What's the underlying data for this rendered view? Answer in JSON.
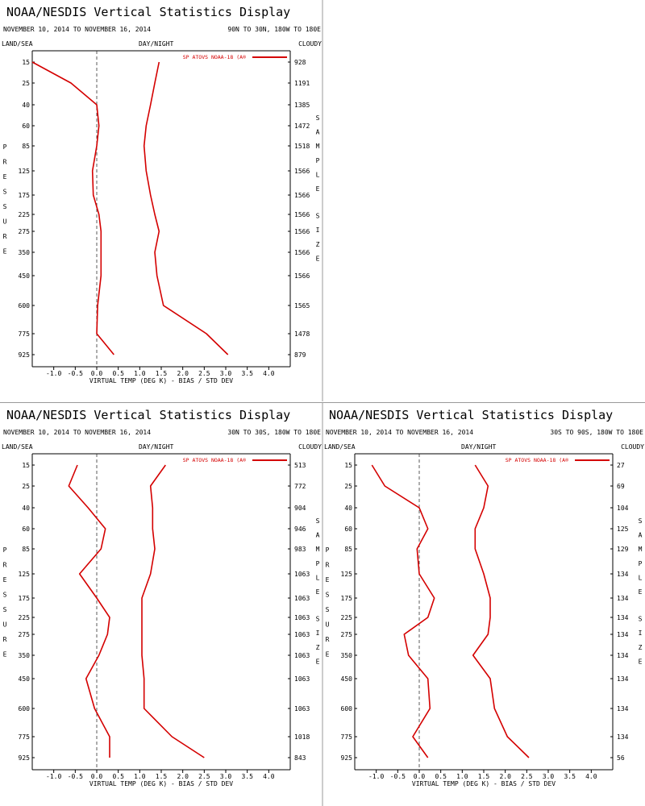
{
  "page": {
    "title": "NOAA/NESDIS Vertical Statistics Display",
    "date_range": "NOVEMBER 10, 2014 TO NOVEMBER 16, 2014",
    "land_sea_label": "LAND/SEA",
    "day_night_label": "DAY/NIGHT",
    "cloudy_label": "CLOUDY",
    "legend_label": "SP ATOVS NOAA-18 (A®",
    "y_axis_label": "PRESSURE",
    "right_axis_label": "SAMPLE SIZE",
    "x_axis_label": "VIRTUAL TEMP (DEG K) - BIAS / STD DEV",
    "colors": {
      "series": "#d40000",
      "axis": "#000000",
      "zero_line": "#000000"
    }
  },
  "chart_data": [
    {
      "type": "line",
      "region": "90N TO 30N, 180W TO 180E",
      "pressure_levels": [
        "15",
        "25",
        "40",
        "60",
        "85",
        "125",
        "175",
        "225",
        "275",
        "350",
        "450",
        "600",
        "775",
        "925"
      ],
      "sample_size": [
        "928",
        "1191",
        "1385",
        "1472",
        "1518",
        "1566",
        "1566",
        "1566",
        "1566",
        "1566",
        "1566",
        "1565",
        "1478",
        "879"
      ],
      "xlim": [
        -1.5,
        4.5
      ],
      "x_ticks": [
        -1.0,
        -0.5,
        0.0,
        0.5,
        1.0,
        1.5,
        2.0,
        2.5,
        3.0,
        3.5,
        4.0
      ],
      "x_tick_labels": [
        "-1.0",
        "-0.5",
        "0.0",
        "0.5",
        "1.0",
        "1.5",
        "2.0",
        "2.5",
        "3.0",
        "3.5",
        "4.0"
      ],
      "series": [
        {
          "values": [
            -1.5,
            -0.6,
            0.0,
            0.05,
            0.0,
            -0.1,
            -0.08,
            0.05,
            0.1,
            0.1,
            0.1,
            0.02,
            0.0,
            0.4
          ]
        },
        {
          "values": [
            1.45,
            1.35,
            1.25,
            1.15,
            1.1,
            1.15,
            1.25,
            1.35,
            1.45,
            1.35,
            1.4,
            1.55,
            2.55,
            3.05
          ]
        }
      ]
    },
    {
      "type": "line",
      "region": "30N TO 30S, 180W TO 180E",
      "pressure_levels": [
        "15",
        "25",
        "40",
        "60",
        "85",
        "125",
        "175",
        "225",
        "275",
        "350",
        "450",
        "600",
        "775",
        "925"
      ],
      "sample_size": [
        "513",
        "772",
        "904",
        "946",
        "983",
        "1063",
        "1063",
        "1063",
        "1063",
        "1063",
        "1063",
        "1063",
        "1018",
        "843"
      ],
      "xlim": [
        -1.5,
        4.5
      ],
      "x_ticks": [
        -1.0,
        -0.5,
        0.0,
        0.5,
        1.0,
        1.5,
        2.0,
        2.5,
        3.0,
        3.5,
        4.0
      ],
      "x_tick_labels": [
        "-1.0",
        "-0.5",
        "0.0",
        "0.5",
        "1.0",
        "1.5",
        "2.0",
        "2.5",
        "3.0",
        "3.5",
        "4.0"
      ],
      "series": [
        {
          "values": [
            -0.45,
            -0.65,
            -0.2,
            0.2,
            0.1,
            -0.4,
            0.0,
            0.3,
            0.25,
            0.05,
            -0.25,
            -0.05,
            0.3,
            0.3
          ]
        },
        {
          "values": [
            1.6,
            1.25,
            1.3,
            1.3,
            1.35,
            1.25,
            1.05,
            1.05,
            1.05,
            1.05,
            1.1,
            1.1,
            1.75,
            2.5
          ]
        }
      ]
    },
    {
      "type": "line",
      "region": "30S TO 90S, 180W TO 180E",
      "pressure_levels": [
        "15",
        "25",
        "40",
        "60",
        "85",
        "125",
        "175",
        "225",
        "275",
        "350",
        "450",
        "600",
        "775",
        "925"
      ],
      "sample_size": [
        "27",
        "69",
        "104",
        "125",
        "129",
        "134",
        "134",
        "134",
        "134",
        "134",
        "134",
        "134",
        "134",
        "56"
      ],
      "xlim": [
        -1.5,
        4.5
      ],
      "x_ticks": [
        -1.0,
        -0.5,
        0.0,
        0.5,
        1.0,
        1.5,
        2.0,
        2.5,
        3.0,
        3.5,
        4.0
      ],
      "x_tick_labels": [
        "-1.0",
        "-0.5",
        "0.0",
        "0.5",
        "1.0",
        "1.5",
        "2.0",
        "2.5",
        "3.0",
        "3.5",
        "4.0"
      ],
      "series": [
        {
          "values": [
            -1.1,
            -0.8,
            0.0,
            0.2,
            -0.05,
            0.0,
            0.35,
            0.2,
            -0.35,
            -0.25,
            0.2,
            0.25,
            -0.15,
            0.2
          ]
        },
        {
          "values": [
            1.3,
            1.6,
            1.5,
            1.3,
            1.3,
            1.5,
            1.65,
            1.65,
            1.6,
            1.25,
            1.65,
            1.75,
            2.05,
            2.55
          ]
        }
      ]
    }
  ]
}
